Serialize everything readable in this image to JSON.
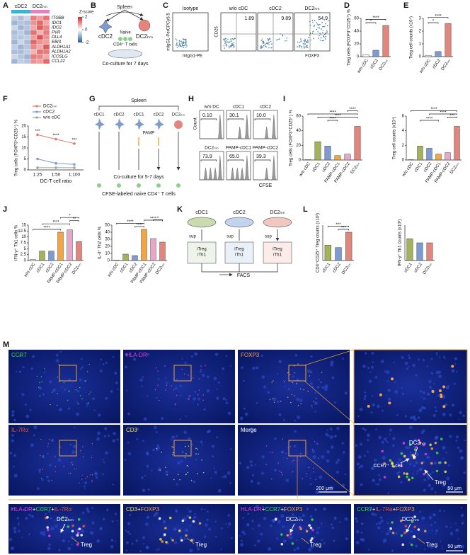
{
  "A": {
    "label": "A",
    "groups": [
      "cDC2",
      "DC2ₕₘ"
    ],
    "group_colors": [
      "#35b6d4",
      "#e97fc0"
    ],
    "genes": [
      "ITGB8",
      "IDO1",
      "IDO2",
      "PVR",
      "DLL4",
      "EBI3",
      "ALDH1A1",
      "ALDH1A2",
      "ICOSLG",
      "CCL22"
    ],
    "zscore": {
      "title": "Z-score",
      "ticks": [
        2,
        0,
        -2
      ],
      "lim": [
        -2,
        2
      ]
    },
    "matrix": [
      [
        -0.6,
        -0.8,
        -0.5,
        1.2,
        0.9,
        1.3
      ],
      [
        -0.9,
        -0.7,
        -0.8,
        1.0,
        1.4,
        0.8
      ],
      [
        -0.5,
        -0.9,
        -0.7,
        0.8,
        1.5,
        1.1
      ],
      [
        -0.8,
        -0.6,
        -0.9,
        1.3,
        0.7,
        1.2
      ],
      [
        -0.7,
        -0.7,
        -0.6,
        0.9,
        1.6,
        1.0
      ],
      [
        -0.9,
        -0.5,
        -0.8,
        1.4,
        1.0,
        0.9
      ],
      [
        -0.6,
        -0.9,
        -0.7,
        1.1,
        0.8,
        1.5
      ],
      [
        -0.8,
        -0.8,
        -0.6,
        0.7,
        1.3,
        1.2
      ],
      [
        -0.5,
        -0.7,
        -0.9,
        1.2,
        1.1,
        0.8
      ],
      [
        -0.9,
        -0.6,
        -0.7,
        1.0,
        0.9,
        1.4
      ]
    ]
  },
  "B": {
    "label": "B",
    "spleen": "Spleen",
    "cells": [
      "cDC2",
      "DC2ₕₘ"
    ],
    "naive": "Naive",
    "tcells": "CD4⁺ T cells",
    "caption": "Co-culture for 7 days"
  },
  "C": {
    "label": "C",
    "plots": [
      {
        "title": "Isotype"
      },
      {
        "title": "w/o cDC",
        "gate": "1.89"
      },
      {
        "title": "cDC2",
        "gate": "9.89"
      },
      {
        "title": "DC2ₕₘ",
        "gate": "54.9"
      }
    ],
    "isotype_axes": {
      "y": "mIgG1-PerCPCy5.5",
      "x": "mIgG1-PE"
    },
    "axes": {
      "y": "CD25",
      "x": "FOXP3"
    }
  },
  "D": {
    "label": "D",
    "type": "bar",
    "ylabel": "Treg cells (FOXP3⁺CD25⁺) %",
    "categories": [
      "w/o cDC",
      "cDC2",
      "DC2ₕₘ"
    ],
    "values": [
      3,
      10,
      49
    ],
    "colors": [
      "#ffffff",
      "#7d9bd1",
      "#e2867d"
    ],
    "ylim": [
      0,
      60
    ],
    "yticks": [
      0,
      20,
      40,
      60
    ],
    "stars": [
      "*",
      "****"
    ]
  },
  "E": {
    "label": "E",
    "type": "bar",
    "ylabel": "Treg cell counts (x10⁴)",
    "categories": [
      "w/o cDC",
      "cDC2",
      "DC2ₕₘ"
    ],
    "values": [
      0.1,
      0.4,
      2.6
    ],
    "colors": [
      "#ffffff",
      "#7d9bd1",
      "#e2867d"
    ],
    "ylim": [
      0,
      3
    ],
    "yticks": [
      0,
      1,
      2,
      3
    ],
    "stars": [
      "*",
      "****"
    ]
  },
  "F": {
    "label": "F",
    "type": "line",
    "ylabel": "Treg cells (FOXP3⁺CD25⁺) %",
    "xlabel": "DC-T cell ratio",
    "categories": [
      "1:25",
      "1:50",
      "1:100"
    ],
    "series": [
      {
        "name": "DC2ₕₘ",
        "color": "#e07b73",
        "values": [
          16,
          14,
          12
        ]
      },
      {
        "name": "cDC2",
        "color": "#7d9bd1",
        "values": [
          5,
          3,
          2.5
        ]
      },
      {
        "name": "w/o cDC",
        "color": "#a0a0a0",
        "values": [
          1,
          1,
          1
        ]
      }
    ],
    "ylim": [
      0,
      20
    ],
    "yticks": [
      0,
      5,
      10,
      15,
      20
    ],
    "stars": [
      "***",
      "****",
      "***"
    ]
  },
  "G": {
    "label": "G",
    "spleen": "Spleen",
    "cells": [
      "cDC1",
      "cDC2",
      "cDC1",
      "cDC2",
      "DC2ₕₘ"
    ],
    "pamp": "PAMP",
    "caption": "Co-culture for 5-7 days",
    "tcells": "CFSE-labeled naive CD4⁺ T cells"
  },
  "H": {
    "label": "H",
    "plots": [
      {
        "title": "w/o DC",
        "gate": "0.10"
      },
      {
        "title": "cDC1",
        "gate": "30.1"
      },
      {
        "title": "cDC2",
        "gate": "10.0"
      },
      {
        "title": "DC2ₕₘ",
        "gate": "73.9"
      },
      {
        "title": "PAMP-cDC1",
        "gate": "65.0"
      },
      {
        "title": "PAMP-cDC2",
        "gate": "39.3"
      }
    ],
    "ylabel": "Count",
    "xlabel": "CFSE"
  },
  "I": {
    "label": "I",
    "charts": [
      {
        "type": "bar",
        "ylabel": "Treg cells (FOXP3⁺CD25⁺) %",
        "categories": [
          "w/o cDC",
          "cDC1",
          "cDC2",
          "PAMP-cDC1",
          "PAMP-cDC2",
          "DC2ₕₘ"
        ],
        "values": [
          0.5,
          25,
          19,
          6,
          8,
          46
        ],
        "colors": [
          "#ffffff",
          "#a4b35a",
          "#7d9bd1",
          "#f2a541",
          "#e6a8c9",
          "#e2867d"
        ],
        "ylim": [
          0,
          60
        ],
        "yticks": [
          0,
          20,
          40,
          60
        ],
        "stars": [
          "****",
          "****",
          "****",
          "****"
        ]
      },
      {
        "type": "bar",
        "ylabel": "Treg cell counts (x10⁴)",
        "categories": [
          "w/o cDC",
          "cDC1",
          "cDC2",
          "PAMP-cDC1",
          "PAMP-cDC2",
          "DC2ₕₘ"
        ],
        "values": [
          0.05,
          1.9,
          1.6,
          0.8,
          1.0,
          4.6
        ],
        "colors": [
          "#ffffff",
          "#a4b35a",
          "#7d9bd1",
          "#f2a541",
          "#e6a8c9",
          "#e2867d"
        ],
        "ylim": [
          0,
          6
        ],
        "yticks": [
          0,
          2,
          4,
          6
        ],
        "stars": [
          "****",
          "***",
          "****",
          "****"
        ]
      }
    ]
  },
  "J": {
    "label": "J",
    "charts": [
      {
        "type": "bar",
        "ylabel": "IFN-γ⁺ Th1 cells %",
        "categories": [
          "w/o cDC",
          "cDC1",
          "cDC2",
          "PAMP-cDC1",
          "PAMP-cDC2",
          "DC2ₕₘ"
        ],
        "values": [
          0.5,
          4,
          4,
          12,
          13,
          8
        ],
        "colors": [
          "#ffffff",
          "#a4b35a",
          "#7d9bd1",
          "#f2a541",
          "#e6a8c9",
          "#e2867d"
        ],
        "ylim": [
          0,
          15
        ],
        "yticks": [
          0,
          2.5,
          5,
          7.5,
          10,
          12.5,
          15
        ],
        "stars": [
          "****",
          "****",
          "**",
          "*"
        ]
      },
      {
        "type": "bar",
        "ylabel": "IL-4⁺ Th2 cells %",
        "categories": [
          "w/o cDC",
          "cDC1",
          "cDC2",
          "PAMP-cDC1",
          "PAMP-cDC2",
          "DC2ₕₘ"
        ],
        "values": [
          0.5,
          9,
          7,
          44,
          31,
          26
        ],
        "colors": [
          "#ffffff",
          "#a4b35a",
          "#7d9bd1",
          "#f2a541",
          "#e6a8c9",
          "#e2867d"
        ],
        "ylim": [
          0,
          50
        ],
        "yticks": [
          0,
          10,
          20,
          30,
          40,
          50
        ],
        "stars": [
          "****",
          "****",
          "****",
          "*"
        ]
      }
    ]
  },
  "K": {
    "label": "K",
    "dishes": [
      "cDC1",
      "cDC2",
      "DC2ₕₘ"
    ],
    "sup": "sup",
    "itreg": "iTreg",
    "ith1": "iTh1",
    "facs": "FACS"
  },
  "L": {
    "label": "L",
    "charts": [
      {
        "type": "bar",
        "ylabel": "CD4⁺CD25⁺ Treg counts (x10³)",
        "categories": [
          "cDC1",
          "cDC2",
          "DC2ₕₘ"
        ],
        "values": [
          0.65,
          0.55,
          1.2
        ],
        "colors": [
          "#a4b35a",
          "#7d9bd1",
          "#e2867d"
        ],
        "ylim": [
          0,
          1.5
        ],
        "stars": [
          "***",
          "***"
        ]
      },
      {
        "type": "bar",
        "ylabel": "IFN-γ⁺ Th1 counts (x10³)",
        "categories": [
          "cDC1",
          "cDC2",
          "DC2ₕₘ"
        ],
        "values": [
          0.37,
          0.3,
          0.3
        ],
        "colors": [
          "#a4b35a",
          "#7d9bd1",
          "#e2867d"
        ],
        "ylim": [
          0,
          0.6
        ]
      }
    ]
  },
  "M": {
    "label": "M",
    "channels": [
      {
        "text": "CCR7",
        "color": "#3ddc3d"
      },
      {
        "text": "HLA-DR",
        "color": "#e040e0"
      },
      {
        "text": "FOXP3",
        "color": "#f5a04a"
      },
      {
        "text": "IL-7Rα",
        "color": "#e8553a"
      },
      {
        "text": "CD3",
        "color": "#f0e040"
      },
      {
        "text": "Merge",
        "color": "#ffffff"
      }
    ],
    "dc": "DC2ₕₘ",
    "tcell": "CCR7⁺ T cell",
    "treg": "Treg",
    "scalebars": [
      "200 μm",
      "50 μm"
    ],
    "merges": [
      [
        {
          "text": "HLA-DR",
          "color": "#e040e0"
        },
        {
          "text": "+",
          "color": "#ffffff"
        },
        {
          "text": "CCR7",
          "color": "#3ddc3d"
        },
        {
          "text": "+",
          "color": "#ffffff"
        },
        {
          "text": "IL-7Rα",
          "color": "#e8553a"
        }
      ],
      [
        {
          "text": "CD3",
          "color": "#f0e040"
        },
        {
          "text": "+",
          "color": "#ffffff"
        },
        {
          "text": "FOXP3",
          "color": "#f5a04a"
        }
      ],
      [
        {
          "text": "HLA-DR",
          "color": "#e040e0"
        },
        {
          "text": "+",
          "color": "#ffffff"
        },
        {
          "text": "CCR7",
          "color": "#3ddc3d"
        },
        {
          "text": "+",
          "color": "#ffffff"
        },
        {
          "text": "FOXP3",
          "color": "#f5a04a"
        }
      ],
      [
        {
          "text": "CCR7",
          "color": "#3ddc3d"
        },
        {
          "text": "+",
          "color": "#ffffff"
        },
        {
          "text": "IL-7Rα",
          "color": "#e8553a"
        },
        {
          "text": "+",
          "color": "#ffffff"
        },
        {
          "text": "FOXP3",
          "color": "#f5a04a"
        }
      ]
    ]
  }
}
